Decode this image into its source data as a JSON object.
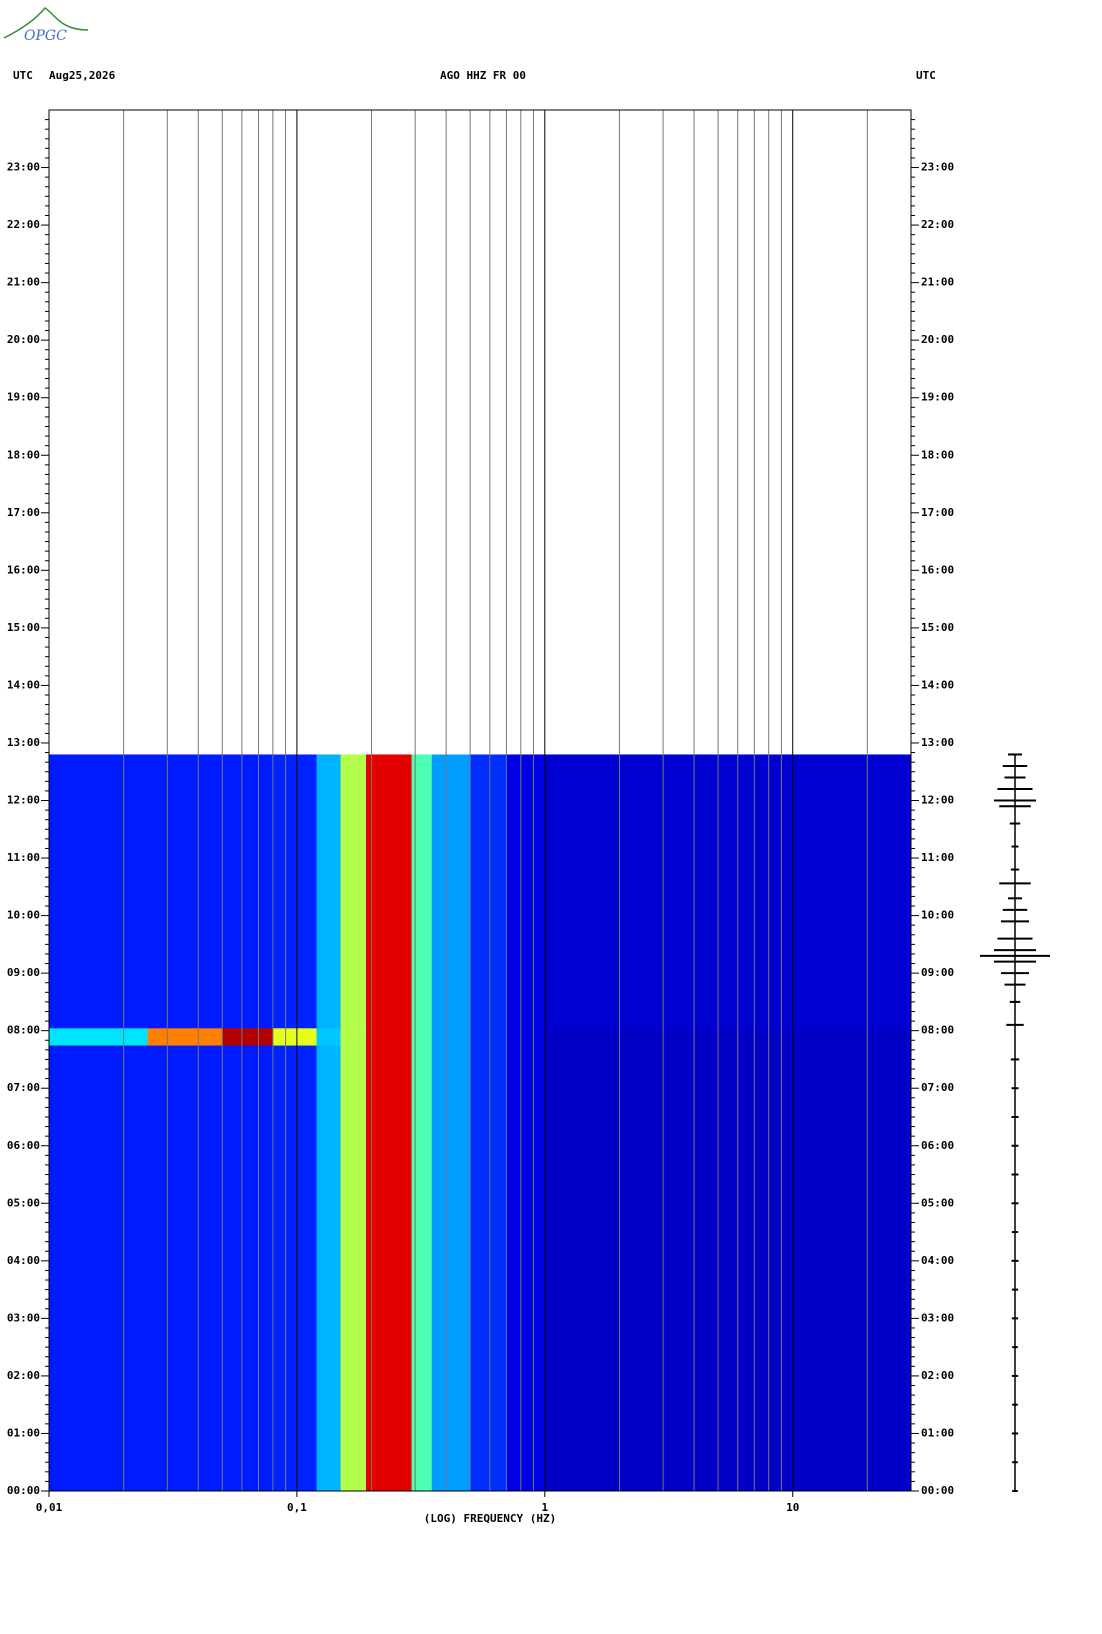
{
  "logo": "OPGC",
  "chart_data": {
    "type": "spectrogram",
    "header_left": "UTC",
    "date": "Aug25,2026",
    "title": "AGO HHZ FR 00",
    "header_right": "UTC",
    "xlabel": "(LOG) FREQUENCY (HZ)",
    "xscale": "log",
    "xlim": [
      0.01,
      30
    ],
    "xticks": [
      {
        "value": 0.01,
        "label": "0,01"
      },
      {
        "value": 0.1,
        "label": "0,1"
      },
      1,
      10
    ],
    "xgrid_minor": [
      0.02,
      0.03,
      0.04,
      0.05,
      0.06,
      0.07,
      0.08,
      0.09,
      0.2,
      0.3,
      0.4,
      0.5,
      0.6,
      0.7,
      0.8,
      0.9,
      2,
      3,
      4,
      5,
      6,
      7,
      8,
      9,
      20
    ],
    "ylim": [
      0,
      24
    ],
    "yticks": [
      {
        "value": 0,
        "label": "00:00"
      },
      {
        "value": 1,
        "label": "01:00"
      },
      {
        "value": 2,
        "label": "02:00"
      },
      {
        "value": 3,
        "label": "03:00"
      },
      {
        "value": 4,
        "label": "04:00"
      },
      {
        "value": 5,
        "label": "05:00"
      },
      {
        "value": 6,
        "label": "06:00"
      },
      {
        "value": 7,
        "label": "07:00"
      },
      {
        "value": 8,
        "label": "08:00"
      },
      {
        "value": 9,
        "label": "09:00"
      },
      {
        "value": 10,
        "label": "10:00"
      },
      {
        "value": 11,
        "label": "11:00"
      },
      {
        "value": 12,
        "label": "12:00"
      },
      {
        "value": 13,
        "label": "13:00"
      },
      {
        "value": 14,
        "label": "14:00"
      },
      {
        "value": 15,
        "label": "15:00"
      },
      {
        "value": 16,
        "label": "16:00"
      },
      {
        "value": 17,
        "label": "17:00"
      },
      {
        "value": 18,
        "label": "18:00"
      },
      {
        "value": 19,
        "label": "19:00"
      },
      {
        "value": 20,
        "label": "20:00"
      },
      {
        "value": 21,
        "label": "21:00"
      },
      {
        "value": 22,
        "label": "22:00"
      },
      {
        "value": 23,
        "label": "23:00"
      }
    ],
    "colormap": "jet",
    "freq_bins": [
      0.01,
      0.025,
      0.05,
      0.08,
      0.12,
      0.15,
      0.19,
      0.29,
      0.35,
      0.5,
      0.7,
      1,
      30
    ],
    "time_bins": [
      0,
      7.75,
      8.05,
      12.8
    ],
    "z": [
      [
        0.15,
        0.15,
        0.15,
        0.16,
        0.3,
        0.55,
        0.9,
        0.45,
        0.28,
        0.17,
        0.1,
        0.07
      ],
      [
        0.35,
        0.75,
        0.95,
        0.6,
        0.32,
        0.55,
        0.9,
        0.45,
        0.28,
        0.17,
        0.1,
        0.07
      ],
      [
        0.15,
        0.15,
        0.15,
        0.16,
        0.3,
        0.55,
        0.9,
        0.45,
        0.28,
        0.17,
        0.1,
        0.08
      ]
    ],
    "trace": {
      "x": [
        0,
        0.5,
        1,
        1.5,
        2,
        2.5,
        3,
        3.5,
        4,
        4.5,
        5,
        5.5,
        6,
        6.5,
        7,
        7.5,
        8.1,
        8.5,
        8.8,
        9.0,
        9.2,
        9.3,
        9.4,
        9.6,
        9.9,
        10.1,
        10.3,
        10.56,
        10.8,
        11.2,
        11.6,
        11.9,
        12.0,
        12.2,
        12.4,
        12.6,
        12.8
      ],
      "values": [
        0.08,
        0.08,
        0.09,
        0.08,
        0.09,
        0.08,
        0.09,
        0.09,
        0.1,
        0.09,
        0.1,
        0.1,
        0.1,
        0.1,
        0.1,
        0.12,
        0.25,
        0.15,
        0.3,
        0.4,
        0.6,
        1.0,
        0.6,
        0.5,
        0.4,
        0.35,
        0.2,
        0.45,
        0.12,
        0.1,
        0.15,
        0.45,
        0.6,
        0.5,
        0.3,
        0.35,
        0.2
      ]
    }
  }
}
